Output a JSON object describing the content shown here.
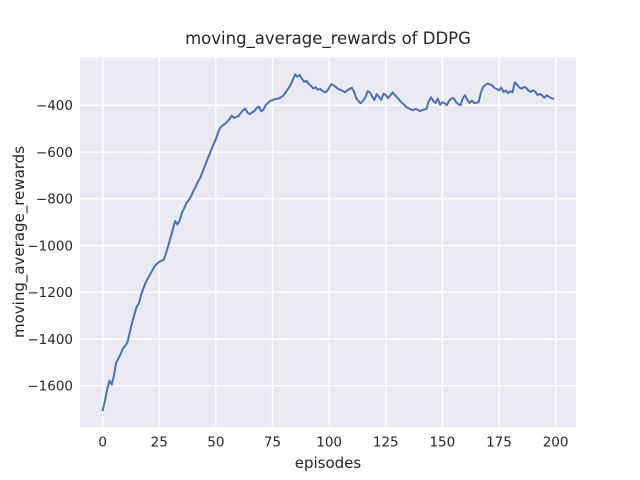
{
  "figure": {
    "background": "#ffffff"
  },
  "chart_data": {
    "type": "line",
    "title": "moving_average_rewards of DDPG",
    "xlabel": "episodes",
    "ylabel": "moving_average_rewards",
    "legend": "none",
    "grid": true,
    "style": {
      "plot_background": "#eaeaf2",
      "grid_color": "#ffffff",
      "line_color": "#4c72b0",
      "text_color": "#262626"
    },
    "xlim": [
      -10,
      209
    ],
    "ylim": [
      -1777,
      -196
    ],
    "xticks": {
      "values": [
        0,
        25,
        50,
        75,
        100,
        125,
        150,
        175,
        200
      ],
      "labels": [
        "0",
        "25",
        "50",
        "75",
        "100",
        "125",
        "150",
        "175",
        "200"
      ]
    },
    "yticks": {
      "values": [
        -400,
        -600,
        -800,
        -1000,
        -1200,
        -1400,
        -1600
      ],
      "labels": [
        "−400",
        "−600",
        "−800",
        "−1000",
        "−1200",
        "−1400",
        "−1600"
      ]
    },
    "series": [
      {
        "name": "moving_average_rewards",
        "color": "#4c72b0",
        "x_start": 0,
        "x_step": 1,
        "values": [
          -1705,
          -1665,
          -1615,
          -1578,
          -1595,
          -1555,
          -1500,
          -1482,
          -1463,
          -1440,
          -1428,
          -1412,
          -1370,
          -1330,
          -1295,
          -1262,
          -1248,
          -1210,
          -1183,
          -1158,
          -1140,
          -1122,
          -1105,
          -1088,
          -1078,
          -1070,
          -1065,
          -1060,
          -1032,
          -1000,
          -965,
          -930,
          -895,
          -910,
          -893,
          -860,
          -840,
          -818,
          -806,
          -790,
          -768,
          -750,
          -728,
          -712,
          -688,
          -663,
          -638,
          -613,
          -590,
          -566,
          -545,
          -515,
          -495,
          -486,
          -480,
          -470,
          -460,
          -444,
          -454,
          -450,
          -446,
          -432,
          -421,
          -414,
          -432,
          -438,
          -430,
          -425,
          -411,
          -406,
          -426,
          -419,
          -399,
          -390,
          -381,
          -378,
          -374,
          -372,
          -370,
          -364,
          -356,
          -342,
          -328,
          -312,
          -290,
          -268,
          -278,
          -270,
          -287,
          -300,
          -295,
          -309,
          -317,
          -328,
          -323,
          -333,
          -330,
          -338,
          -344,
          -341,
          -325,
          -310,
          -315,
          -322,
          -330,
          -334,
          -339,
          -344,
          -337,
          -330,
          -325,
          -342,
          -370,
          -383,
          -391,
          -380,
          -366,
          -340,
          -345,
          -362,
          -377,
          -352,
          -364,
          -377,
          -350,
          -356,
          -369,
          -358,
          -345,
          -356,
          -366,
          -377,
          -388,
          -396,
          -407,
          -412,
          -417,
          -421,
          -416,
          -418,
          -425,
          -421,
          -418,
          -416,
          -382,
          -366,
          -382,
          -390,
          -372,
          -398,
          -387,
          -391,
          -399,
          -380,
          -371,
          -370,
          -386,
          -395,
          -400,
          -370,
          -357,
          -377,
          -390,
          -380,
          -390,
          -389,
          -387,
          -345,
          -322,
          -313,
          -307,
          -311,
          -315,
          -326,
          -330,
          -336,
          -324,
          -343,
          -337,
          -348,
          -340,
          -344,
          -302,
          -312,
          -324,
          -329,
          -322,
          -325,
          -337,
          -343,
          -336,
          -341,
          -356,
          -351,
          -357,
          -368,
          -357,
          -363,
          -369,
          -372
        ]
      }
    ]
  }
}
